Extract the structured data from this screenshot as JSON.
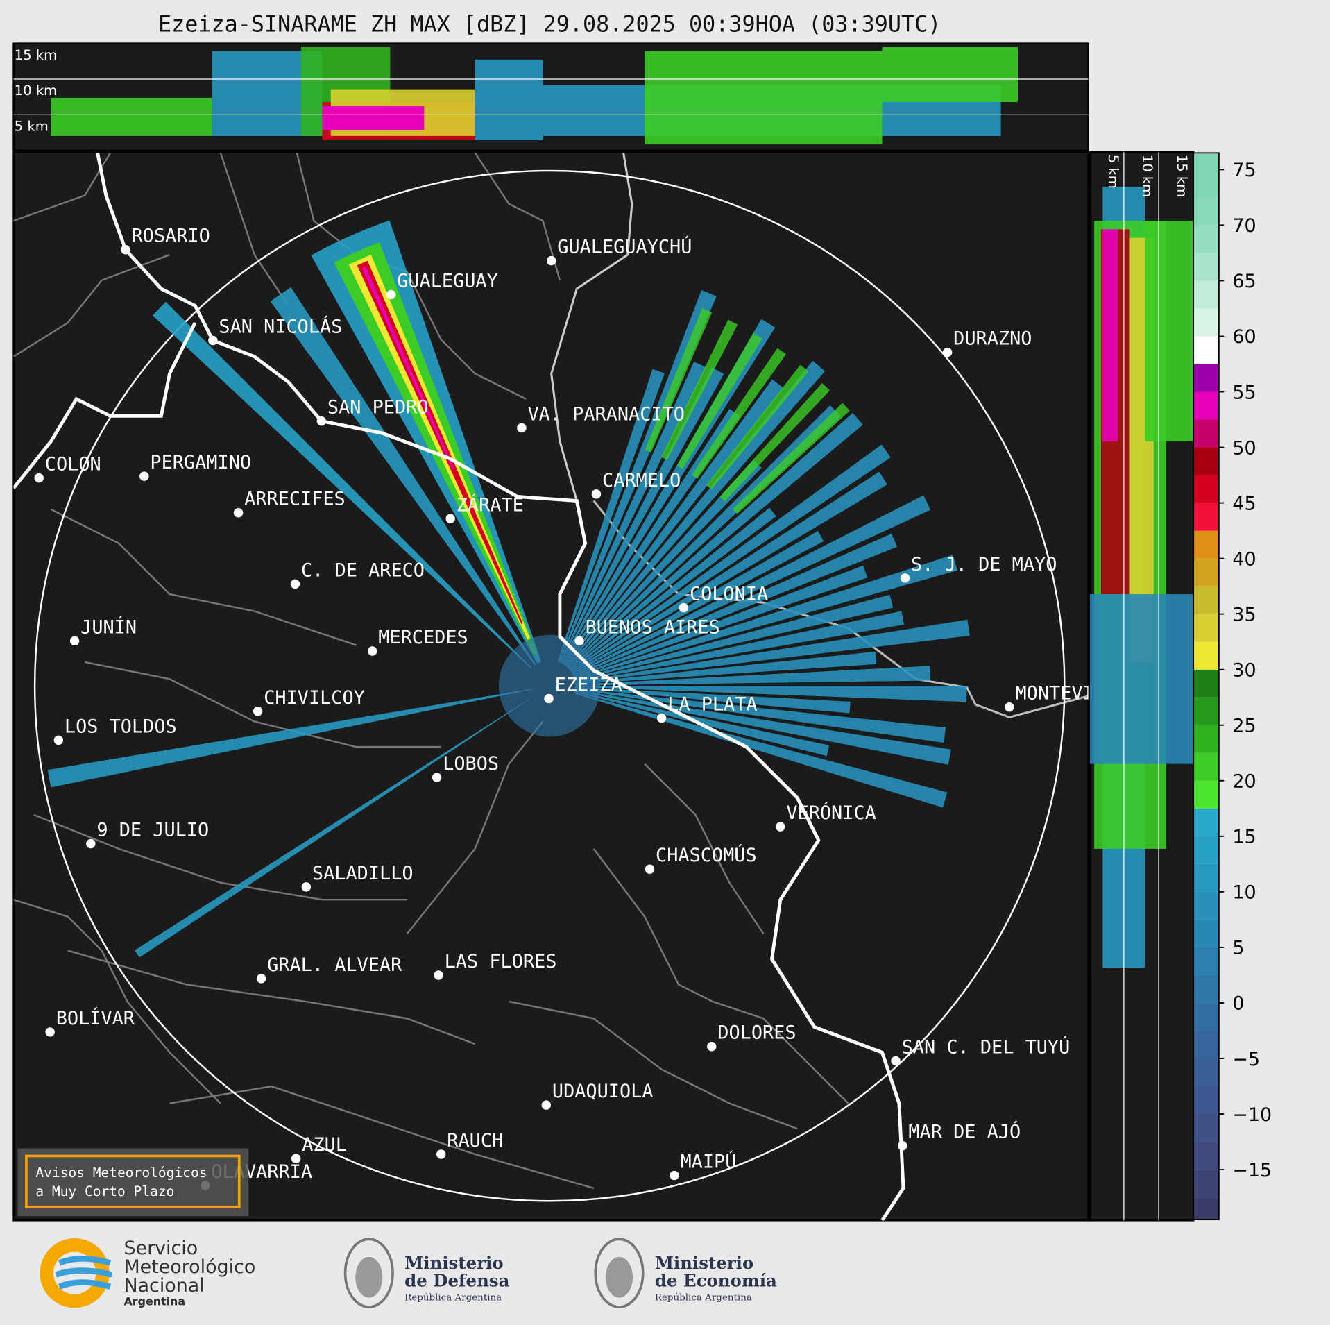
{
  "header": {
    "title": "Ezeiza-SINARAME ZH MAX [dBZ] 29.08.2025 00:39HOA (03:39UTC)"
  },
  "vertical_profiles": {
    "top_labels": [
      "15 km",
      "10 km",
      "5 km"
    ],
    "right_labels": [
      "5 km",
      "10 km",
      "15 km"
    ]
  },
  "map": {
    "cities": [
      "ROSARIO",
      "GUALEGUAYCHÚ",
      "GUALEGUAY",
      "SAN NICOLÁS",
      "DURAZNO",
      "SAN PEDRO",
      "VA. PARANACITO",
      "COLON",
      "PERGAMINO",
      "CARMELO",
      "ARRECIFES",
      "ZÁRATE",
      "S. J. DE MAYO",
      "C. DE ARECO",
      "COLONIA",
      "BUENOS AIRES",
      "JUNÍN",
      "MERCEDES",
      "EZEIZA",
      "MONTEVIDEO",
      "CHIVILCOY",
      "LA PLATA",
      "LOS TOLDOS",
      "LOBOS",
      "VERÓNICA",
      "9 DE JULIO",
      "CHASCOMÚS",
      "SALADILLO",
      "GRAL. ALVEAR",
      "LAS FLORES",
      "BOLÍVAR",
      "DOLORES",
      "SAN C. DEL TUYÚ",
      "UDAQUIOLA",
      "MAR DE AJÓ",
      "RAUCH",
      "AZUL",
      "OLAVARRÍA",
      "MAIPÚ"
    ]
  },
  "colorbar": {
    "lim": [
      -19.5,
      76.5
    ],
    "ticks": [
      {
        "value": -15,
        "label": "−15"
      },
      {
        "value": -10,
        "label": "−10"
      },
      {
        "value": -5,
        "label": "−5"
      },
      0,
      5,
      10,
      15,
      20,
      25,
      30,
      35,
      40,
      45,
      50,
      55,
      60,
      65,
      70,
      75
    ],
    "edges": [
      -19.5,
      -17.5,
      -15,
      -12.5,
      -10,
      -7.5,
      -5,
      -2.5,
      0,
      2.5,
      5,
      7.5,
      10,
      12.5,
      15,
      17.5,
      20,
      22.5,
      25,
      27.5,
      30,
      32.5,
      35,
      37.5,
      40,
      42.5,
      45,
      47.5,
      50,
      52.5,
      55,
      57.5,
      60,
      62.5,
      65,
      67.5,
      70,
      72.5,
      76.5
    ],
    "colors": [
      "#3a3d69",
      "#3d4474",
      "#3f4a7e",
      "#3f5087",
      "#3d568f",
      "#3a5e96",
      "#37669c",
      "#336ea3",
      "#2f77a9",
      "#2c7fb0",
      "#2987b5",
      "#2890ba",
      "#2798c0",
      "#27a1c6",
      "#27aacc",
      "#4de62f",
      "#3ccc26",
      "#30b21f",
      "#269a1c",
      "#1f7f17",
      "#efe832",
      "#d8d030",
      "#c7bd2c",
      "#d2a51f",
      "#df8f13",
      "#f0103a",
      "#d5001e",
      "#a80010",
      "#c6006b",
      "#e600b8",
      "#a000aa",
      "#ffffff",
      "#d8f4e6",
      "#c0ecd8",
      "#a8e4cc",
      "#95dec2",
      "#88dabb",
      "#80d8b5"
    ]
  },
  "notice": {
    "lines": [
      "Avisos Meteorológicos",
      "a Muy Corto Plazo"
    ]
  },
  "footer": {
    "smn": {
      "lines": [
        "Servicio",
        "Meteorológico",
        "Nacional"
      ],
      "country": "Argentina"
    },
    "defensa": {
      "lines": [
        "Ministerio",
        "de Defensa"
      ],
      "country": "República Argentina"
    },
    "economia": {
      "lines": [
        "Ministerio",
        "de Economía"
      ],
      "country": "República Argentina"
    }
  }
}
